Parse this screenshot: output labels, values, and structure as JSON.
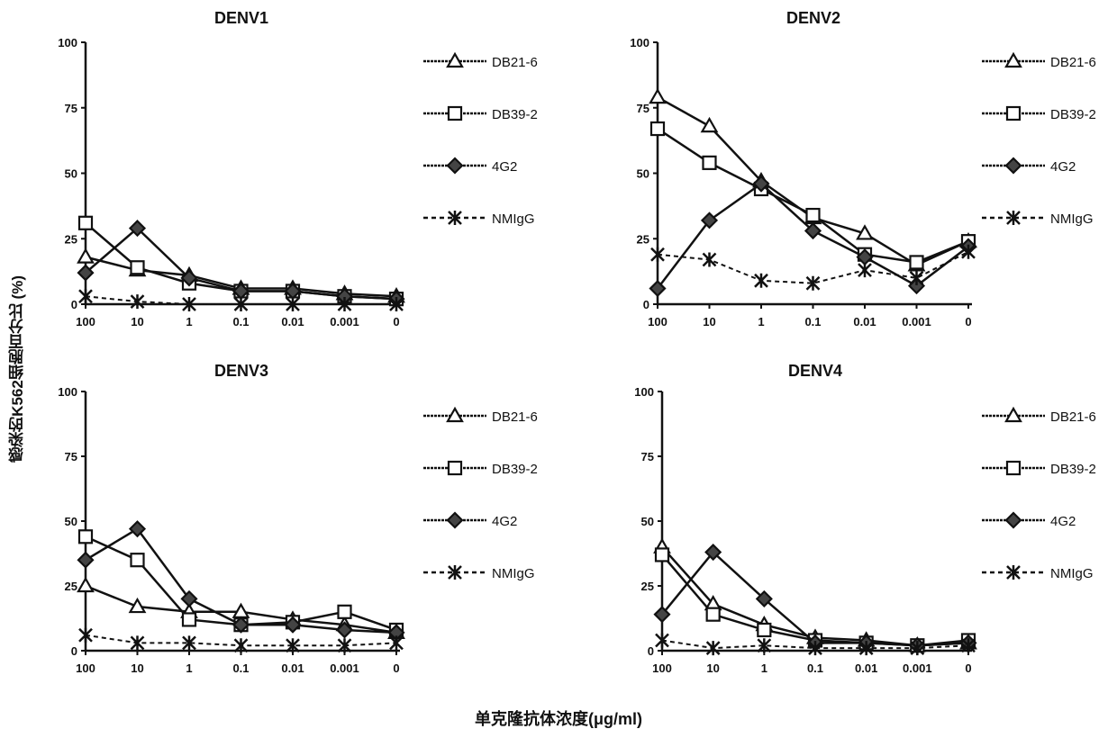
{
  "chart_data": [
    {
      "type": "line",
      "title": "DENV1",
      "categories": [
        "100",
        "10",
        "1",
        "0.1",
        "0.01",
        "0.001",
        "0"
      ],
      "ylim": [
        0,
        100
      ],
      "yticks": [
        "0",
        "25",
        "50",
        "75",
        "100"
      ],
      "legend": "right",
      "series": [
        {
          "name": "DB21-6",
          "marker": "triangle",
          "values": [
            18,
            13,
            11,
            6,
            6,
            4,
            3
          ]
        },
        {
          "name": "DB39-2",
          "marker": "square",
          "values": [
            31,
            14,
            8,
            5,
            5,
            3,
            2
          ]
        },
        {
          "name": "4G2",
          "marker": "diamond",
          "values": [
            12,
            29,
            10,
            5,
            5,
            3,
            2
          ]
        },
        {
          "name": "NMIgG",
          "marker": "star",
          "dashed": true,
          "values": [
            3,
            1,
            0,
            0,
            0,
            0,
            0
          ]
        }
      ]
    },
    {
      "type": "line",
      "title": "DENV2",
      "categories": [
        "100",
        "10",
        "1",
        "0.1",
        "0.01",
        "0.001",
        "0"
      ],
      "ylim": [
        0,
        100
      ],
      "yticks": [
        "0",
        "25",
        "50",
        "75",
        "100"
      ],
      "legend": "right",
      "series": [
        {
          "name": "DB21-6",
          "marker": "triangle",
          "values": [
            79,
            68,
            47,
            33,
            27,
            15,
            24
          ]
        },
        {
          "name": "DB39-2",
          "marker": "square",
          "values": [
            67,
            54,
            44,
            34,
            19,
            16,
            24
          ]
        },
        {
          "name": "4G2",
          "marker": "diamond",
          "values": [
            6,
            32,
            46,
            28,
            18,
            7,
            22
          ]
        },
        {
          "name": "NMIgG",
          "marker": "star",
          "dashed": true,
          "values": [
            19,
            17,
            9,
            8,
            13,
            10,
            20
          ]
        }
      ]
    },
    {
      "type": "line",
      "title": "DENV3",
      "categories": [
        "100",
        "10",
        "1",
        "0.1",
        "0.01",
        "0.001",
        "0"
      ],
      "ylim": [
        0,
        100
      ],
      "yticks": [
        "0",
        "25",
        "50",
        "75",
        "100"
      ],
      "legend": "right",
      "series": [
        {
          "name": "DB21-6",
          "marker": "triangle",
          "values": [
            25,
            17,
            15,
            15,
            12,
            10,
            7
          ]
        },
        {
          "name": "DB39-2",
          "marker": "square",
          "values": [
            44,
            35,
            12,
            10,
            11,
            15,
            8
          ]
        },
        {
          "name": "4G2",
          "marker": "diamond",
          "values": [
            35,
            47,
            20,
            10,
            10,
            8,
            7
          ]
        },
        {
          "name": "NMIgG",
          "marker": "star",
          "dashed": true,
          "values": [
            6,
            3,
            3,
            2,
            2,
            2,
            3
          ]
        }
      ]
    },
    {
      "type": "line",
      "title": "DENV4",
      "categories": [
        "100",
        "10",
        "1",
        "0.1",
        "0.01",
        "0.001",
        "0"
      ],
      "ylim": [
        0,
        100
      ],
      "yticks": [
        "0",
        "25",
        "50",
        "75",
        "100"
      ],
      "legend": "right",
      "series": [
        {
          "name": "DB21-6",
          "marker": "triangle",
          "values": [
            40,
            18,
            10,
            5,
            4,
            2,
            3
          ]
        },
        {
          "name": "DB39-2",
          "marker": "square",
          "values": [
            37,
            14,
            8,
            4,
            3,
            2,
            4
          ]
        },
        {
          "name": "4G2",
          "marker": "diamond",
          "values": [
            14,
            38,
            20,
            3,
            3,
            2,
            3
          ]
        },
        {
          "name": "NMIgG",
          "marker": "star",
          "dashed": true,
          "values": [
            4,
            1,
            2,
            1,
            1,
            1,
            2
          ]
        }
      ]
    }
  ],
  "ylabel": "感染的K562细胞百分比 (%)",
  "xlabel": "单克隆抗体浓度(μg/ml)"
}
